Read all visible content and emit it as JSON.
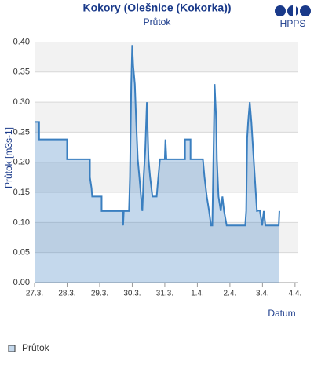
{
  "chart_data": {
    "type": "area",
    "title": "Kokory (Olešnice (Kokorka))",
    "subtitle": "Průtok",
    "logo": "HPPS",
    "ylabel": "Průtok [m3s-1]",
    "xlabel": "Datum",
    "xlim": [
      0,
      8.1
    ],
    "xticks": [
      {
        "value": 0,
        "label": "27.3."
      },
      {
        "value": 1,
        "label": "28.3."
      },
      {
        "value": 2,
        "label": "29.3."
      },
      {
        "value": 3,
        "label": "30.3."
      },
      {
        "value": 4,
        "label": "31.3."
      },
      {
        "value": 5,
        "label": "1.4."
      },
      {
        "value": 6,
        "label": "2.4."
      },
      {
        "value": 7,
        "label": "3.4."
      },
      {
        "value": 8,
        "label": "4.4."
      }
    ],
    "ylim": [
      0,
      0.415
    ],
    "yticks": [
      {
        "value": 0,
        "label": "0.00"
      },
      {
        "value": 0.05,
        "label": "0.05"
      },
      {
        "value": 0.1,
        "label": "0.10"
      },
      {
        "value": 0.15,
        "label": "0.15"
      },
      {
        "value": 0.2,
        "label": "0.20"
      },
      {
        "value": 0.25,
        "label": "0.25"
      },
      {
        "value": 0.3,
        "label": "0.30"
      },
      {
        "value": 0.35,
        "label": "0.35"
      },
      {
        "value": 0.4,
        "label": "0.40"
      }
    ],
    "grid": true,
    "legend": "bottom-left",
    "series": [
      {
        "name": "Průtok",
        "color": "#3a7fc0",
        "x": [
          0,
          0.14,
          0.14,
          1.0,
          1.0,
          1.7,
          1.7,
          1.75,
          1.77,
          2.06,
          2.06,
          2.7,
          2.72,
          2.74,
          2.9,
          2.93,
          2.97,
          3.0,
          3.03,
          3.08,
          3.12,
          3.17,
          3.22,
          3.27,
          3.31,
          3.35,
          3.4,
          3.45,
          3.5,
          3.55,
          3.62,
          3.75,
          3.8,
          3.85,
          4.0,
          4.02,
          4.05,
          4.62,
          4.62,
          4.79,
          4.79,
          5.17,
          5.22,
          5.29,
          5.36,
          5.42,
          5.46,
          5.53,
          5.58,
          5.6,
          5.65,
          5.72,
          5.77,
          5.82,
          5.9,
          6.47,
          6.5,
          6.53,
          6.56,
          6.61,
          6.66,
          6.73,
          6.83,
          6.92,
          6.99,
          7.04,
          7.09,
          7.5,
          7.52
        ],
        "values": [
          0.267,
          0.267,
          0.238,
          0.238,
          0.205,
          0.205,
          0.175,
          0.157,
          0.143,
          0.143,
          0.119,
          0.119,
          0.095,
          0.119,
          0.119,
          0.175,
          0.33,
          0.395,
          0.36,
          0.33,
          0.27,
          0.205,
          0.175,
          0.143,
          0.119,
          0.175,
          0.22,
          0.3,
          0.205,
          0.175,
          0.143,
          0.143,
          0.175,
          0.205,
          0.205,
          0.238,
          0.205,
          0.205,
          0.238,
          0.238,
          0.205,
          0.205,
          0.175,
          0.143,
          0.119,
          0.095,
          0.095,
          0.33,
          0.27,
          0.205,
          0.143,
          0.119,
          0.143,
          0.119,
          0.095,
          0.095,
          0.119,
          0.24,
          0.267,
          0.3,
          0.267,
          0.205,
          0.119,
          0.12,
          0.095,
          0.119,
          0.095,
          0.095,
          0.119
        ]
      }
    ]
  }
}
